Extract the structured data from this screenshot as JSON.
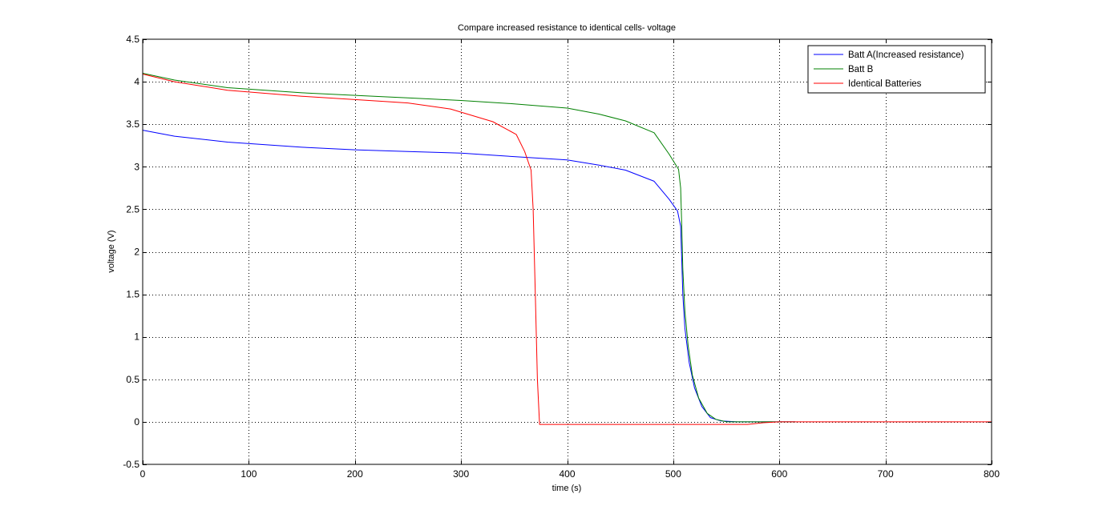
{
  "chart_data": {
    "type": "line",
    "title": "Compare increased resistance to identical cells- voltage",
    "xlabel": "time (s)",
    "ylabel": "voltage (V)",
    "xlim": [
      0,
      800
    ],
    "ylim": [
      -0.5,
      4.5
    ],
    "xticks": [
      0,
      100,
      200,
      300,
      400,
      500,
      600,
      700,
      800
    ],
    "xtick_labels": [
      "0",
      "100",
      "200",
      "300",
      "400",
      "500",
      "600",
      "700",
      "800"
    ],
    "yticks": [
      -0.5,
      0,
      0.5,
      1,
      1.5,
      2,
      2.5,
      3,
      3.5,
      4,
      4.5
    ],
    "ytick_labels": [
      "-0.5",
      "0",
      "0.5",
      "1",
      "1.5",
      "2",
      "2.5",
      "3",
      "3.5",
      "4",
      "4.5"
    ],
    "grid": true,
    "legend_position": "top-right",
    "series": [
      {
        "name": "Batt A(Increased resistance)",
        "color": "#0000ff",
        "points": [
          [
            0,
            3.43
          ],
          [
            30,
            3.36
          ],
          [
            80,
            3.29
          ],
          [
            150,
            3.23
          ],
          [
            200,
            3.2
          ],
          [
            250,
            3.18
          ],
          [
            300,
            3.16
          ],
          [
            350,
            3.12
          ],
          [
            400,
            3.08
          ],
          [
            430,
            3.02
          ],
          [
            455,
            2.96
          ],
          [
            482,
            2.83
          ],
          [
            496,
            2.62
          ],
          [
            504,
            2.48
          ],
          [
            507,
            2.3
          ],
          [
            508,
            1.9
          ],
          [
            509,
            1.5
          ],
          [
            511,
            1.1
          ],
          [
            515,
            0.7
          ],
          [
            520,
            0.4
          ],
          [
            527,
            0.18
          ],
          [
            535,
            0.05
          ],
          [
            545,
            0.01
          ],
          [
            560,
            0.0
          ],
          [
            615,
            0.0
          ]
        ]
      },
      {
        "name": "Batt B",
        "color": "#008000",
        "points": [
          [
            0,
            4.1
          ],
          [
            30,
            4.02
          ],
          [
            80,
            3.93
          ],
          [
            150,
            3.87
          ],
          [
            200,
            3.84
          ],
          [
            250,
            3.81
          ],
          [
            300,
            3.78
          ],
          [
            350,
            3.74
          ],
          [
            400,
            3.69
          ],
          [
            430,
            3.62
          ],
          [
            455,
            3.54
          ],
          [
            482,
            3.4
          ],
          [
            496,
            3.15
          ],
          [
            505,
            2.97
          ],
          [
            507,
            2.75
          ],
          [
            508,
            2.3
          ],
          [
            509,
            1.8
          ],
          [
            511,
            1.3
          ],
          [
            514,
            0.9
          ],
          [
            518,
            0.55
          ],
          [
            524,
            0.28
          ],
          [
            532,
            0.1
          ],
          [
            540,
            0.03
          ],
          [
            550,
            0.0
          ],
          [
            615,
            0.0
          ]
        ]
      },
      {
        "name": "Identical Batteries",
        "color": "#ff0000",
        "points": [
          [
            0,
            4.09
          ],
          [
            30,
            4.0
          ],
          [
            80,
            3.9
          ],
          [
            150,
            3.83
          ],
          [
            200,
            3.79
          ],
          [
            250,
            3.75
          ],
          [
            290,
            3.68
          ],
          [
            330,
            3.53
          ],
          [
            352,
            3.38
          ],
          [
            360,
            3.18
          ],
          [
            366,
            2.96
          ],
          [
            368,
            2.5
          ],
          [
            370,
            1.5
          ],
          [
            372,
            0.5
          ],
          [
            374,
            -0.03
          ],
          [
            400,
            -0.03
          ],
          [
            500,
            -0.03
          ],
          [
            570,
            -0.03
          ],
          [
            585,
            -0.01
          ],
          [
            600,
            0.0
          ],
          [
            800,
            0.0
          ]
        ]
      }
    ]
  }
}
